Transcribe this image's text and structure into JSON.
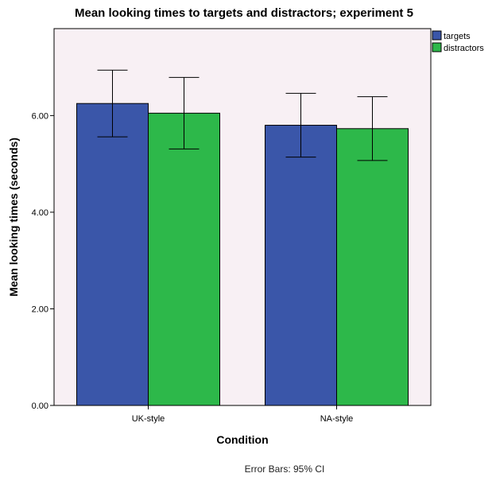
{
  "chart_data": {
    "type": "bar",
    "title": "Mean looking times to targets and distractors; experiment 5",
    "xlabel": "Condition",
    "ylabel": "Mean looking times (seconds)",
    "categories": [
      "UK-style",
      "NA-style"
    ],
    "series": [
      {
        "name": "targets",
        "color": "#3a56a9",
        "values": [
          6.25,
          5.8
        ],
        "ci_low": [
          5.56,
          5.14
        ],
        "ci_high": [
          6.94,
          6.46
        ]
      },
      {
        "name": "distractors",
        "color": "#2db84a",
        "values": [
          6.05,
          5.73
        ],
        "ci_low": [
          5.31,
          5.07
        ],
        "ci_high": [
          6.79,
          6.39
        ]
      }
    ],
    "ylim": [
      0,
      7.8
    ],
    "yticks": [
      0,
      2,
      4,
      6
    ],
    "ytick_labels": [
      "0.00",
      "2.00",
      "4.00",
      "6.00"
    ],
    "grid": false,
    "legend_position": "top-right",
    "plot_background": "#f8f0f4",
    "footnote": "Error Bars: 95% CI"
  }
}
